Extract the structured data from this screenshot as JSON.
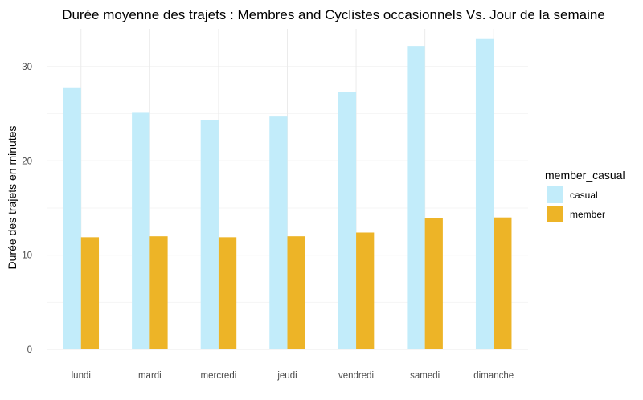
{
  "chart_data": {
    "type": "bar",
    "title": "Durée moyenne des trajets : Membres and Cyclistes occasionnels Vs. Jour de la semaine",
    "xlabel": "",
    "ylabel": "Durée des trajets en minutes",
    "categories": [
      "lundi",
      "mardi",
      "mercredi",
      "jeudi",
      "vendredi",
      "samedi",
      "dimanche"
    ],
    "series": [
      {
        "name": "casual",
        "color": "#c2ecfa",
        "values": [
          27.8,
          25.1,
          24.3,
          24.7,
          27.3,
          32.2,
          33.0
        ]
      },
      {
        "name": "member",
        "color": "#edb427",
        "values": [
          11.9,
          12.0,
          11.9,
          12.0,
          12.4,
          13.9,
          14.0
        ]
      }
    ],
    "ylim": [
      0,
      34.0
    ],
    "yticks": [
      "0",
      "10",
      "20",
      "30"
    ],
    "grid": true,
    "legend": {
      "title": "member_casual",
      "position": "right"
    }
  }
}
